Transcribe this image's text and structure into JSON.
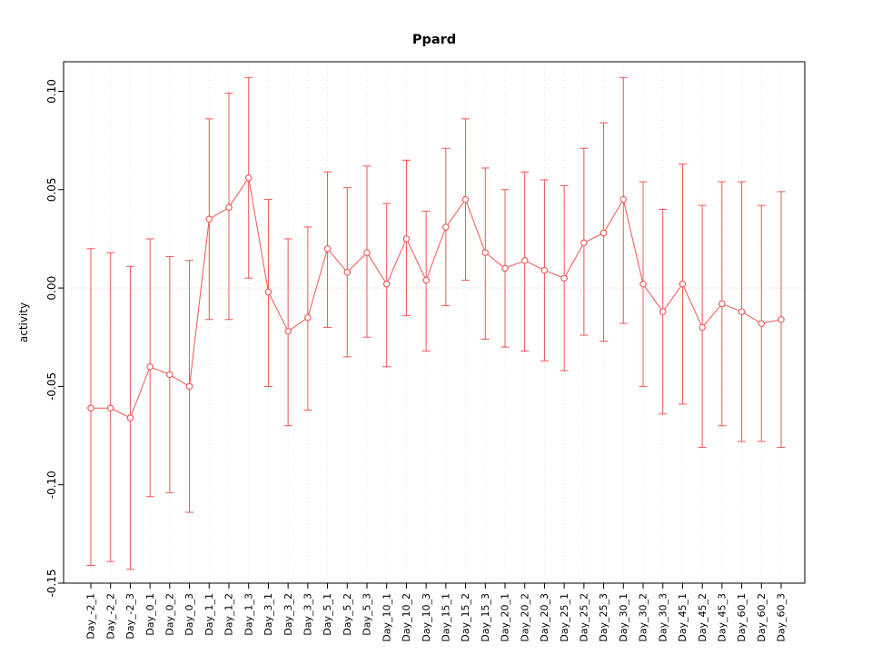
{
  "page": {
    "background": "#ffffff"
  },
  "chart_data": {
    "type": "line",
    "title": "Ppard",
    "xlabel": "",
    "ylabel": "activity",
    "marker": "open-circle",
    "error_bars": true,
    "grid": "vertical-dotted",
    "legend": null,
    "ylim": [
      -0.15,
      0.115
    ],
    "yticks": [
      -0.15,
      -0.1,
      -0.05,
      0.0,
      0.05,
      0.1
    ],
    "ytick_labels": [
      "-0.15",
      "-0.10",
      "-0.05",
      "0.00",
      "0.05",
      "0.10"
    ],
    "reference_line": {
      "value": 0,
      "style": "dotted"
    },
    "categories": [
      "Day_-2_1",
      "Day_-2_2",
      "Day_-2_3",
      "Day_0_1",
      "Day_0_2",
      "Day_0_3",
      "Day_1_1",
      "Day_1_2",
      "Day_1_3",
      "Day_3_1",
      "Day_3_2",
      "Day_3_3",
      "Day_5_1",
      "Day_5_2",
      "Day_5_3",
      "Day_10_1",
      "Day_10_2",
      "Day_10_3",
      "Day_15_1",
      "Day_15_2",
      "Day_15_3",
      "Day_20_1",
      "Day_20_2",
      "Day_20_3",
      "Day_25_1",
      "Day_25_2",
      "Day_25_3",
      "Day_30_1",
      "Day_30_2",
      "Day_30_3",
      "Day_45_1",
      "Day_45_2",
      "Day_45_3",
      "Day_60_1",
      "Day_60_2",
      "Day_60_3"
    ],
    "series": [
      {
        "name": "activity",
        "values": [
          -0.061,
          -0.061,
          -0.066,
          -0.04,
          -0.044,
          -0.05,
          0.035,
          0.041,
          0.056,
          -0.002,
          -0.022,
          -0.015,
          0.02,
          0.008,
          0.018,
          0.002,
          0.025,
          0.004,
          0.031,
          0.045,
          0.018,
          0.01,
          0.014,
          0.009,
          0.005,
          0.023,
          0.028,
          0.045,
          0.002,
          -0.012,
          0.002,
          -0.02,
          -0.008,
          -0.012,
          -0.018,
          -0.016
        ],
        "upper": [
          0.02,
          0.018,
          0.011,
          0.025,
          0.016,
          0.014,
          0.086,
          0.099,
          0.107,
          0.045,
          0.025,
          0.031,
          0.059,
          0.051,
          0.062,
          0.043,
          0.065,
          0.039,
          0.071,
          0.086,
          0.061,
          0.05,
          0.059,
          0.055,
          0.052,
          0.071,
          0.084,
          0.107,
          0.054,
          0.04,
          0.063,
          0.042,
          0.054,
          0.054,
          0.042,
          0.049
        ],
        "lower": [
          -0.141,
          -0.139,
          -0.143,
          -0.106,
          -0.104,
          -0.114,
          -0.016,
          -0.016,
          0.005,
          -0.05,
          -0.07,
          -0.062,
          -0.02,
          -0.035,
          -0.025,
          -0.04,
          -0.014,
          -0.032,
          -0.009,
          0.004,
          -0.026,
          -0.03,
          -0.032,
          -0.037,
          -0.042,
          -0.024,
          -0.027,
          -0.018,
          -0.05,
          -0.064,
          -0.059,
          -0.081,
          -0.07,
          -0.078,
          -0.078,
          -0.081
        ]
      }
    ],
    "colors": {
      "series": "#f05454",
      "error_bar": "#f05454",
      "marker_fill": "#ffffff",
      "zero_line": "#f6bcbc",
      "gridline": "#dcdcdc",
      "axis": "#000000",
      "text": "#000000"
    }
  }
}
